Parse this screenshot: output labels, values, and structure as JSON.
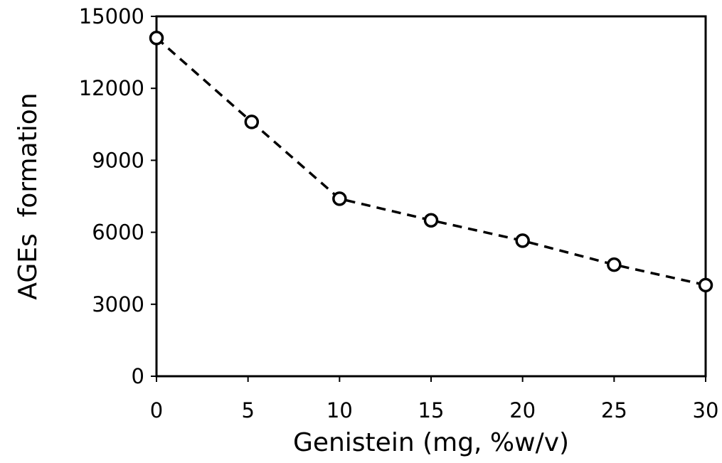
{
  "chart_data": {
    "type": "line",
    "title": "",
    "xlabel": "Genistein (mg, %w/v)",
    "ylabel": "AGEs  formation",
    "xlim": [
      0,
      30
    ],
    "ylim": [
      0,
      15000
    ],
    "xticks": [
      0,
      5,
      10,
      15,
      20,
      25,
      30
    ],
    "yticks": [
      0,
      3000,
      6000,
      9000,
      12000,
      15000
    ],
    "grid": false,
    "legend": "none",
    "series": [
      {
        "x": [
          0,
          5.2,
          10,
          15,
          20,
          25,
          30
        ],
        "y": [
          14100,
          10600,
          7400,
          6500,
          5650,
          4650,
          3800
        ],
        "line_style": "dashed",
        "marker": "open-circle",
        "color": "#000000"
      }
    ]
  }
}
